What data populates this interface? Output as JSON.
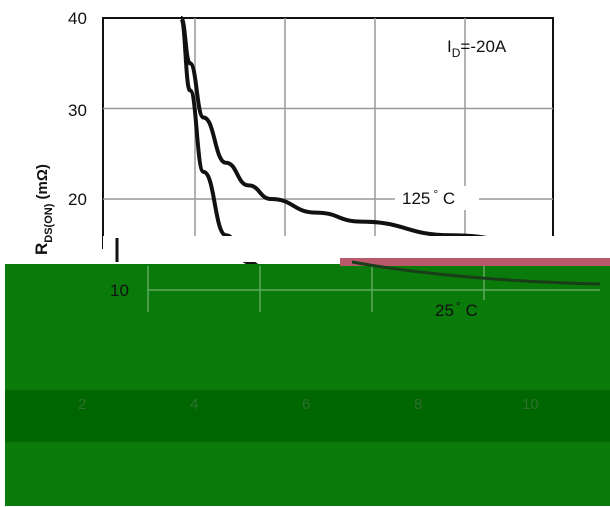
{
  "chart_data": {
    "type": "line",
    "ylabel": "R",
    "ylabel_sub": "DS(ON)",
    "ylabel_unit": " (mΩ)",
    "yticks": [
      "40",
      "30",
      "20",
      "10"
    ],
    "xticks": [
      "2",
      "4",
      "6",
      "8",
      "10"
    ],
    "ylim": [
      0,
      40
    ],
    "xlim": [
      0,
      10
    ],
    "grid": true,
    "condition": {
      "main": "I",
      "sub": "D",
      "rest": "=-20A"
    },
    "series": [
      {
        "name": "125° C",
        "x": [
          2,
          2.2,
          2.5,
          3,
          3.5,
          4,
          5,
          6,
          8,
          10
        ],
        "y": [
          40,
          35,
          29,
          24,
          21.5,
          20,
          18.5,
          17.5,
          16,
          15
        ]
      },
      {
        "name": "25° C",
        "x": [
          2,
          2.2,
          2.5,
          3,
          3.5,
          4,
          5,
          6,
          8,
          10
        ],
        "y": [
          40,
          32,
          23,
          16,
          13,
          11.6,
          10.5,
          9.8,
          9,
          8.5
        ]
      }
    ],
    "labels_125": {
      "value": "125",
      "unit": " C"
    },
    "labels_25": {
      "value": "25",
      "unit": " C"
    },
    "degree_symbol": "°"
  },
  "colors": {
    "overlay": "#0a7a0a",
    "overlay_dark": "#006600",
    "overlay_band": "#0d6e0d",
    "accent_line": "#b85a6a",
    "grid": "#999999",
    "curve": "#111111"
  }
}
